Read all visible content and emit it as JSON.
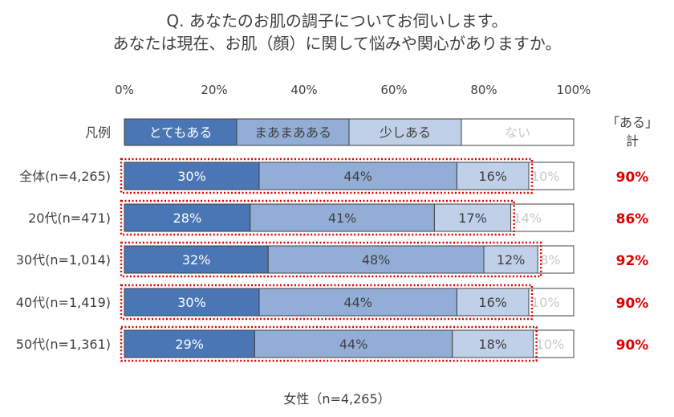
{
  "title_line1": "Q. あなたのお肌の調子についてお伺いします。",
  "title_line2": "あなたは現在、お肌（顔）に関して悩みや関心がありますか。",
  "footer": "女性（n=4,265）",
  "chart_data": {
    "type": "bar",
    "orientation": "horizontal-stacked-100",
    "x_ticks": [
      "0%",
      "20%",
      "40%",
      "60%",
      "80%",
      "100%"
    ],
    "xlim": [
      0,
      100
    ],
    "legend_row_label": "凡例",
    "series": [
      {
        "name": "とてもある",
        "color": "#4a76b5"
      },
      {
        "name": "まあまあある",
        "color": "#92aed6"
      },
      {
        "name": "少しある",
        "color": "#bfd0e8"
      },
      {
        "name": "ない",
        "color": "#ffffff"
      }
    ],
    "total_header": [
      "「ある」",
      "計"
    ],
    "highlight_color": "#e00000",
    "rows": [
      {
        "label": "全体(n=4,265)",
        "values": [
          30,
          44,
          16,
          10
        ],
        "value_labels": [
          "30%",
          "44%",
          "16%",
          "10%"
        ],
        "total": "90%"
      },
      {
        "label": "20代(n=471)",
        "values": [
          28,
          41,
          17,
          14
        ],
        "value_labels": [
          "28%",
          "41%",
          "17%",
          "14%"
        ],
        "total": "86%"
      },
      {
        "label": "30代(n=1,014)",
        "values": [
          32,
          48,
          12,
          8
        ],
        "value_labels": [
          "32%",
          "48%",
          "12%",
          "8%"
        ],
        "total": "92%"
      },
      {
        "label": "40代(n=1,419)",
        "values": [
          30,
          44,
          16,
          10
        ],
        "value_labels": [
          "30%",
          "44%",
          "16%",
          "10%"
        ],
        "total": "90%"
      },
      {
        "label": "50代(n=1,361)",
        "values": [
          29,
          44,
          18,
          10
        ],
        "value_labels": [
          "29%",
          "44%",
          "18%",
          "10%"
        ],
        "total": "90%"
      }
    ]
  }
}
